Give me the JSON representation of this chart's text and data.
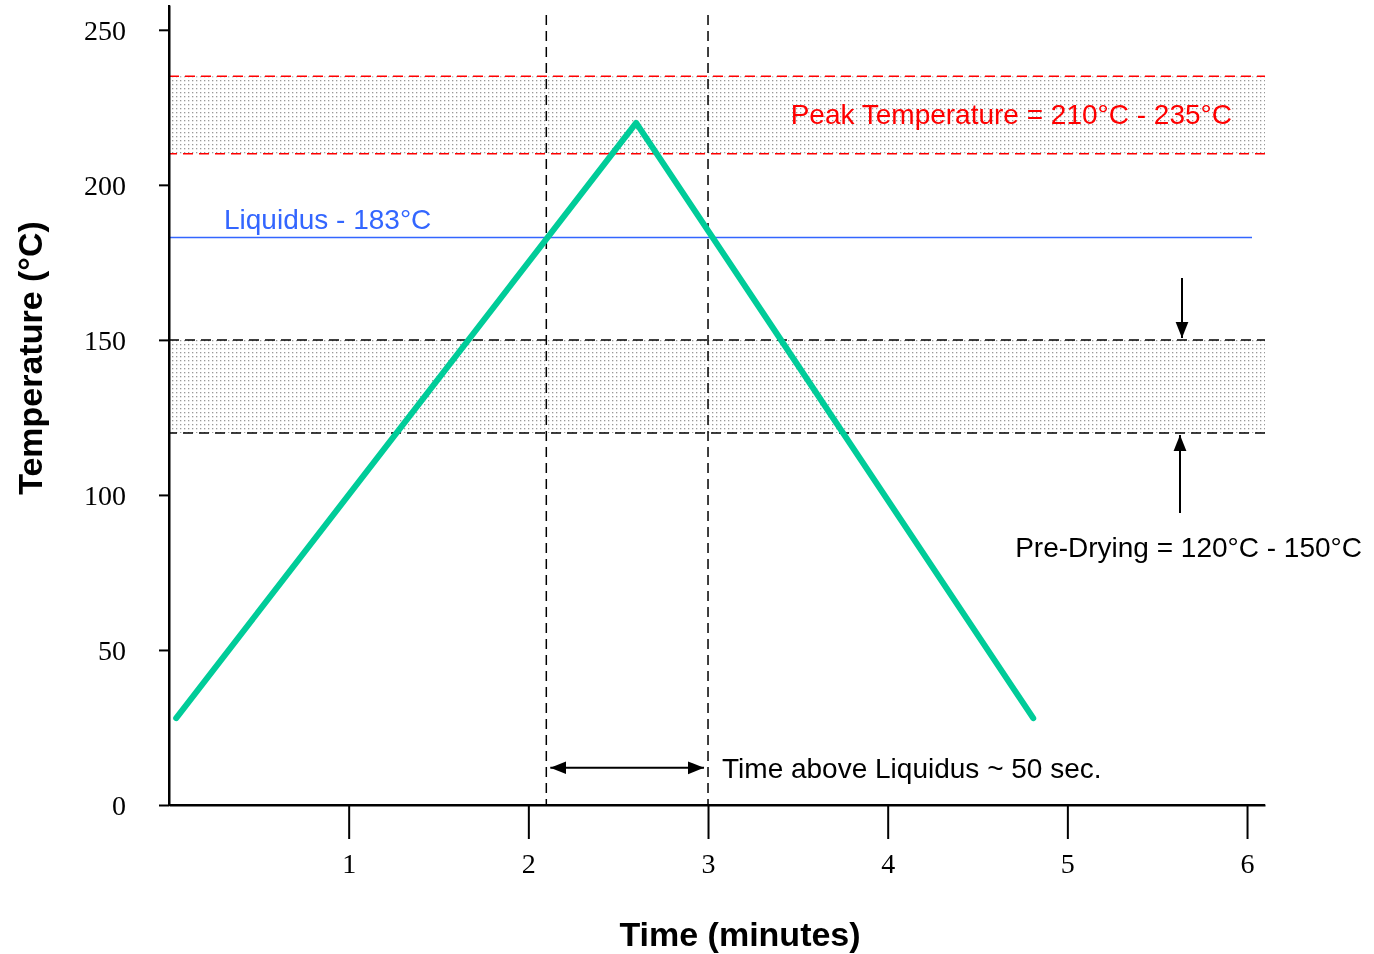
{
  "chart_data": {
    "type": "line",
    "xlabel": "Time (minutes)",
    "ylabel": "Temperature (°C)",
    "xlim": [
      0,
      6.1
    ],
    "ylim": [
      0,
      258
    ],
    "xticks": [
      1,
      2,
      3,
      4,
      5,
      6
    ],
    "yticks": [
      0,
      50,
      100,
      150,
      200,
      250
    ],
    "line_style": "solid",
    "series": [
      {
        "color": "#00cc99",
        "x": [
          0.04,
          2.6,
          4.81
        ],
        "values": [
          28,
          220,
          28
        ]
      }
    ],
    "ref_lines": [
      {
        "axis": "y",
        "value": 183,
        "label": "Liquidus - 183°C",
        "color": "#3366ff",
        "line_style": "solid"
      },
      {
        "axis": "x",
        "value": 2.1,
        "color": "#000000",
        "line_style": "dashed"
      },
      {
        "axis": "x",
        "value": 3.0,
        "color": "#000000",
        "line_style": "dashed"
      }
    ],
    "bands": [
      {
        "axis": "y",
        "from": 210,
        "to": 235,
        "label": "Peak Temperature = 210°C - 235°C",
        "color": "#ff0000"
      },
      {
        "axis": "y",
        "from": 120,
        "to": 150,
        "label": "Pre-Drying = 120°C - 150°C",
        "color": "#000000"
      }
    ],
    "annotations": [
      "Time above Liquidus ~ 50 sec."
    ]
  }
}
